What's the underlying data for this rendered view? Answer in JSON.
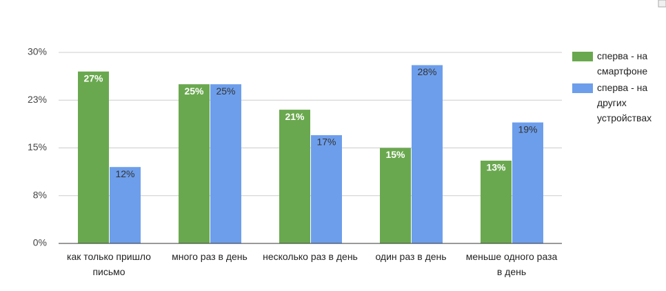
{
  "chart_data": {
    "type": "bar",
    "categories": [
      "как только пришло письмо",
      "много раз в день",
      "несколько раз в день",
      "один раз в день",
      "меньше одного раза в день"
    ],
    "series": [
      {
        "name": "сперва - на смартфоне",
        "color": "#6aa84f",
        "values": [
          27,
          25,
          21,
          15,
          13
        ],
        "value_labels": [
          "27%",
          "25%",
          "21%",
          "15%",
          "13%"
        ]
      },
      {
        "name": "сперва - на других устройствах",
        "color": "#6d9eeb",
        "values": [
          12,
          25,
          17,
          28,
          19
        ],
        "value_labels": [
          "12%",
          "25%",
          "17%",
          "28%",
          "19%"
        ]
      }
    ],
    "ylim": [
      0,
      30
    ],
    "yticks": [
      {
        "value": 0,
        "label": "0%"
      },
      {
        "value": 7.5,
        "label": "8%"
      },
      {
        "value": 15,
        "label": "15%"
      },
      {
        "value": 22.5,
        "label": "23%"
      },
      {
        "value": 30,
        "label": "30%"
      }
    ],
    "grid": true,
    "legend": "right"
  }
}
